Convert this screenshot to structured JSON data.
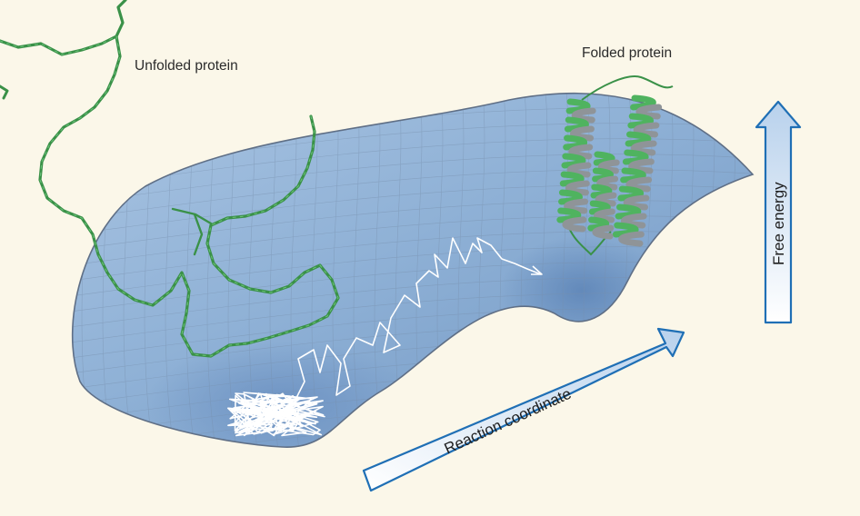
{
  "labels": {
    "unfolded_protein": "Unfolded protein",
    "folded_protein": "Folded protein",
    "reaction_coordinate": "Reaction coordinate",
    "free_energy": "Free energy"
  },
  "colors": {
    "background": "#fbf7e9",
    "surface": "#8fb1d6",
    "surface_edge": "#5f6f86",
    "arrow_outline": "#1f6fb5",
    "arrow_fill": "#cfe0f1",
    "protein_green": "#3c9a4c",
    "helix_gray": "#8f9498",
    "trajectory": "#ffffff"
  }
}
